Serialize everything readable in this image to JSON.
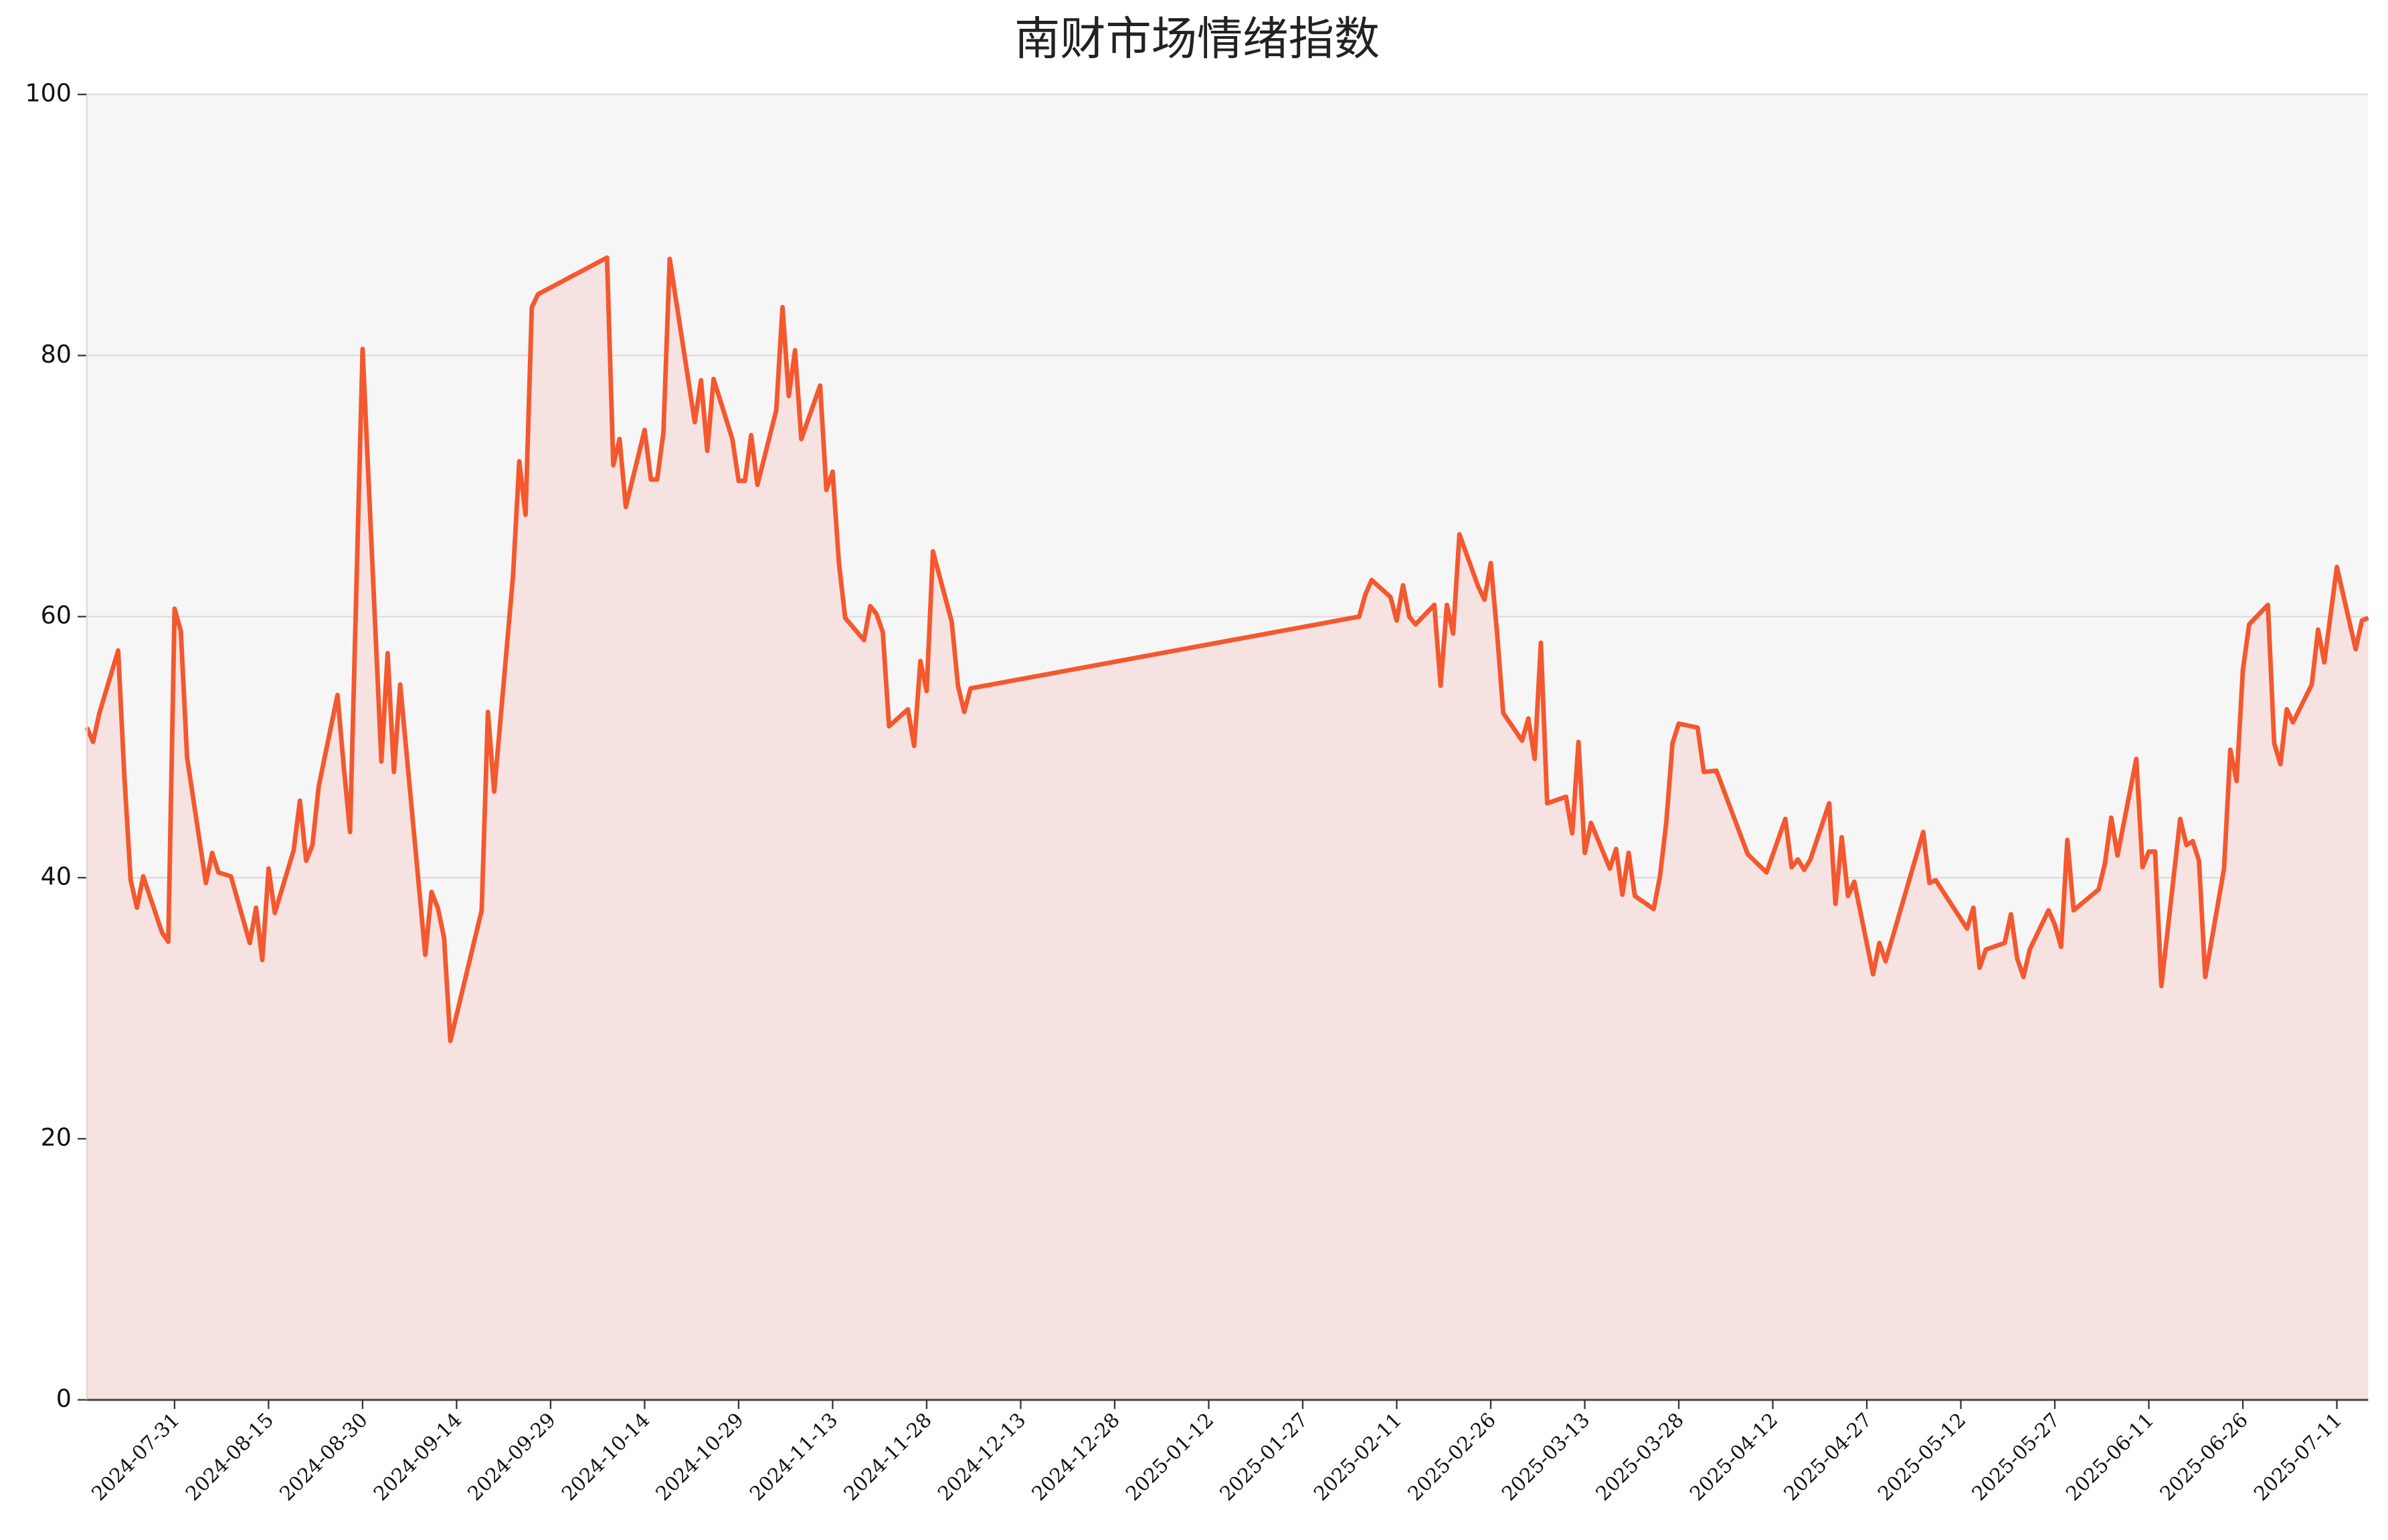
{
  "chart_data": {
    "type": "line",
    "title": "南财市场情绪指数",
    "x": [
      "2024-07-17",
      "2024-07-18",
      "2024-07-19",
      "2024-07-22",
      "2024-07-23",
      "2024-07-24",
      "2024-07-25",
      "2024-07-26",
      "2024-07-29",
      "2024-07-30",
      "2024-07-31",
      "2024-08-01",
      "2024-08-02",
      "2024-08-05",
      "2024-08-06",
      "2024-08-07",
      "2024-08-09",
      "2024-08-12",
      "2024-08-13",
      "2024-08-14",
      "2024-08-15",
      "2024-08-16",
      "2024-08-19",
      "2024-08-20",
      "2024-08-21",
      "2024-08-22",
      "2024-08-23",
      "2024-08-26",
      "2024-08-27",
      "2024-08-28",
      "2024-08-30",
      "2024-09-02",
      "2024-09-03",
      "2024-09-04",
      "2024-09-05",
      "2024-09-09",
      "2024-09-10",
      "2024-09-11",
      "2024-09-12",
      "2024-09-13",
      "2024-09-18",
      "2024-09-19",
      "2024-09-20",
      "2024-09-23",
      "2024-09-24",
      "2024-09-25",
      "2024-09-26",
      "2024-09-27",
      "2024-10-08",
      "2024-10-09",
      "2024-10-10",
      "2024-10-11",
      "2024-10-14",
      "2024-10-15",
      "2024-10-16",
      "2024-10-17",
      "2024-10-18",
      "2024-10-22",
      "2024-10-23",
      "2024-10-24",
      "2024-10-25",
      "2024-10-28",
      "2024-10-29",
      "2024-10-30",
      "2024-10-31",
      "2024-11-01",
      "2024-11-04",
      "2024-11-05",
      "2024-11-06",
      "2024-11-07",
      "2024-11-08",
      "2024-11-11",
      "2024-11-12",
      "2024-11-13",
      "2024-11-14",
      "2024-11-15",
      "2024-11-18",
      "2024-11-19",
      "2024-11-20",
      "2024-11-21",
      "2024-11-22",
      "2024-11-25",
      "2024-11-26",
      "2024-11-27",
      "2024-11-28",
      "2024-11-29",
      "2024-12-02",
      "2024-12-03",
      "2024-12-04",
      "2024-12-05",
      "2025-02-05",
      "2025-02-06",
      "2025-02-07",
      "2025-02-10",
      "2025-02-11",
      "2025-02-12",
      "2025-02-13",
      "2025-02-14",
      "2025-02-17",
      "2025-02-18",
      "2025-02-19",
      "2025-02-20",
      "2025-02-21",
      "2025-02-24",
      "2025-02-25",
      "2025-02-26",
      "2025-02-27",
      "2025-02-28",
      "2025-03-03",
      "2025-03-04",
      "2025-03-05",
      "2025-03-06",
      "2025-03-07",
      "2025-03-10",
      "2025-03-11",
      "2025-03-12",
      "2025-03-13",
      "2025-03-14",
      "2025-03-17",
      "2025-03-18",
      "2025-03-19",
      "2025-03-20",
      "2025-03-21",
      "2025-03-24",
      "2025-03-25",
      "2025-03-26",
      "2025-03-27",
      "2025-03-28",
      "2025-03-31",
      "2025-04-01",
      "2025-04-03",
      "2025-04-08",
      "2025-04-11",
      "2025-04-14",
      "2025-04-15",
      "2025-04-16",
      "2025-04-17",
      "2025-04-18",
      "2025-04-21",
      "2025-04-22",
      "2025-04-23",
      "2025-04-24",
      "2025-04-25",
      "2025-04-28",
      "2025-04-29",
      "2025-04-30",
      "2025-05-06",
      "2025-05-07",
      "2025-05-08",
      "2025-05-13",
      "2025-05-14",
      "2025-05-15",
      "2025-05-16",
      "2025-05-19",
      "2025-05-20",
      "2025-05-21",
      "2025-05-22",
      "2025-05-23",
      "2025-05-26",
      "2025-05-27",
      "2025-05-28",
      "2025-05-29",
      "2025-05-30",
      "2025-06-03",
      "2025-06-04",
      "2025-06-05",
      "2025-06-06",
      "2025-06-09",
      "2025-06-10",
      "2025-06-11",
      "2025-06-12",
      "2025-06-13",
      "2025-06-16",
      "2025-06-17",
      "2025-06-18",
      "2025-06-19",
      "2025-06-20",
      "2025-06-23",
      "2025-06-24",
      "2025-06-25",
      "2025-06-26",
      "2025-06-27",
      "2025-06-30",
      "2025-07-01",
      "2025-07-02",
      "2025-07-03",
      "2025-07-04",
      "2025-07-07",
      "2025-07-08",
      "2025-07-09",
      "2025-07-11",
      "2025-07-14",
      "2025-07-15",
      "2025-07-16"
    ],
    "values": [
      51.5,
      50.4,
      52.6,
      57.4,
      47.7,
      39.8,
      37.7,
      40.1,
      35.8,
      35.1,
      60.6,
      58.9,
      49.2,
      39.6,
      41.9,
      40.4,
      40.1,
      35.0,
      37.7,
      33.7,
      40.7,
      37.3,
      42.1,
      45.9,
      41.3,
      42.5,
      47.0,
      54.0,
      48.5,
      43.5,
      80.5,
      48.9,
      57.2,
      48.1,
      54.8,
      34.1,
      38.9,
      37.7,
      35.4,
      27.5,
      37.5,
      52.7,
      46.6,
      63.1,
      71.9,
      67.8,
      83.7,
      84.7,
      87.5,
      71.6,
      73.6,
      68.4,
      74.3,
      70.5,
      70.5,
      74.1,
      87.4,
      74.9,
      78.1,
      72.7,
      78.2,
      73.6,
      70.4,
      70.4,
      73.9,
      70.1,
      75.8,
      83.7,
      76.9,
      80.4,
      73.6,
      77.7,
      69.7,
      71.1,
      64.1,
      59.9,
      58.2,
      60.8,
      60.2,
      58.8,
      51.6,
      52.9,
      50.1,
      56.6,
      54.3,
      65.0,
      59.6,
      54.7,
      52.7,
      54.5,
      60.0,
      61.7,
      62.8,
      61.5,
      59.7,
      62.4,
      60.0,
      59.4,
      60.9,
      54.7,
      60.9,
      58.7,
      66.3,
      62.3,
      61.3,
      64.1,
      58.8,
      52.6,
      50.5,
      52.2,
      49.1,
      58.0,
      45.7,
      46.2,
      43.4,
      50.4,
      41.9,
      44.2,
      40.7,
      42.2,
      38.7,
      41.9,
      38.6,
      37.6,
      40.1,
      44.2,
      50.3,
      51.8,
      51.5,
      48.1,
      48.2,
      41.8,
      40.4,
      44.5,
      40.8,
      41.4,
      40.6,
      41.4,
      45.7,
      38.0,
      43.1,
      38.6,
      39.7,
      32.6,
      35.0,
      33.6,
      43.5,
      39.6,
      39.8,
      36.1,
      37.7,
      33.1,
      34.5,
      35.0,
      37.2,
      33.8,
      32.4,
      34.5,
      37.5,
      36.4,
      34.7,
      42.9,
      37.5,
      39.1,
      41.1,
      44.6,
      41.7,
      49.1,
      40.8,
      42.0,
      42.0,
      31.7,
      44.5,
      42.5,
      42.8,
      41.3,
      32.4,
      40.7,
      49.8,
      47.4,
      55.9,
      59.4,
      60.9,
      50.3,
      48.7,
      52.9,
      51.9,
      54.8,
      59.0,
      56.5,
      63.8,
      57.5,
      59.7,
      59.9
    ],
    "color": "#f4582f",
    "area_color": "#f6e3e1",
    "plot_background": "#f6f6f6",
    "xlim": [
      "2024-07-17",
      "2025-07-16"
    ],
    "xticks": [
      "2024-07-31",
      "2024-08-15",
      "2024-08-30",
      "2024-09-14",
      "2024-09-29",
      "2024-10-14",
      "2024-10-29",
      "2024-11-13",
      "2024-11-28",
      "2024-12-13",
      "2024-12-28",
      "2025-01-12",
      "2025-01-27",
      "2025-02-11",
      "2025-02-26",
      "2025-03-13",
      "2025-03-28",
      "2025-04-12",
      "2025-04-27",
      "2025-05-12",
      "2025-05-27",
      "2025-06-11",
      "2025-06-26",
      "2025-07-11"
    ],
    "ylim": [
      0,
      100
    ],
    "yticks": [
      0,
      20,
      40,
      60,
      80,
      100
    ],
    "grid": true
  }
}
